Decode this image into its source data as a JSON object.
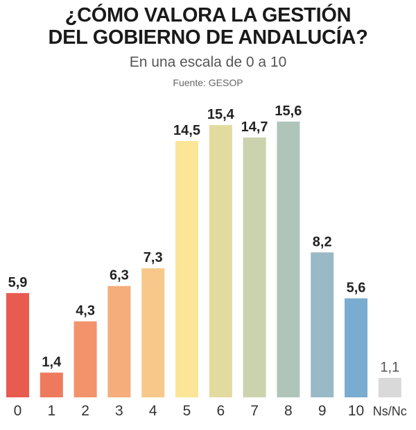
{
  "chart_data": {
    "type": "bar",
    "title": "¿CÓMO VALORA LA GESTIÓN DEL GOBIERNO DE ANDALUCÍA?",
    "title_lines": [
      "¿CÓMO VALORA LA GESTIÓN",
      "DEL GOBIERNO DE ANDALUCÍA?"
    ],
    "subtitle": "En una escala de 0 a 10",
    "source": "Fuente: GESOP",
    "categories": [
      "0",
      "1",
      "2",
      "3",
      "4",
      "5",
      "6",
      "7",
      "8",
      "9",
      "10",
      "Ns/Nc"
    ],
    "values": [
      5.9,
      1.4,
      4.3,
      6.3,
      7.3,
      14.5,
      15.4,
      14.7,
      15.6,
      8.2,
      5.6,
      1.1
    ],
    "labels": [
      "5,9",
      "1,4",
      "4,3",
      "6,3",
      "7,3",
      "14,5",
      "15,4",
      "14,7",
      "15,6",
      "8,2",
      "5,6",
      "1,1"
    ],
    "colors": [
      "#e85b4f",
      "#ee7a5e",
      "#f2936c",
      "#f4ad7b",
      "#f8c88b",
      "#fde598",
      "#e3da9f",
      "#cbd2ae",
      "#b0c5ba",
      "#9ab9c6",
      "#7aabd0",
      "#d9d9d9"
    ],
    "ylim": [
      0,
      15.6
    ],
    "grid": false,
    "legend": "none"
  }
}
